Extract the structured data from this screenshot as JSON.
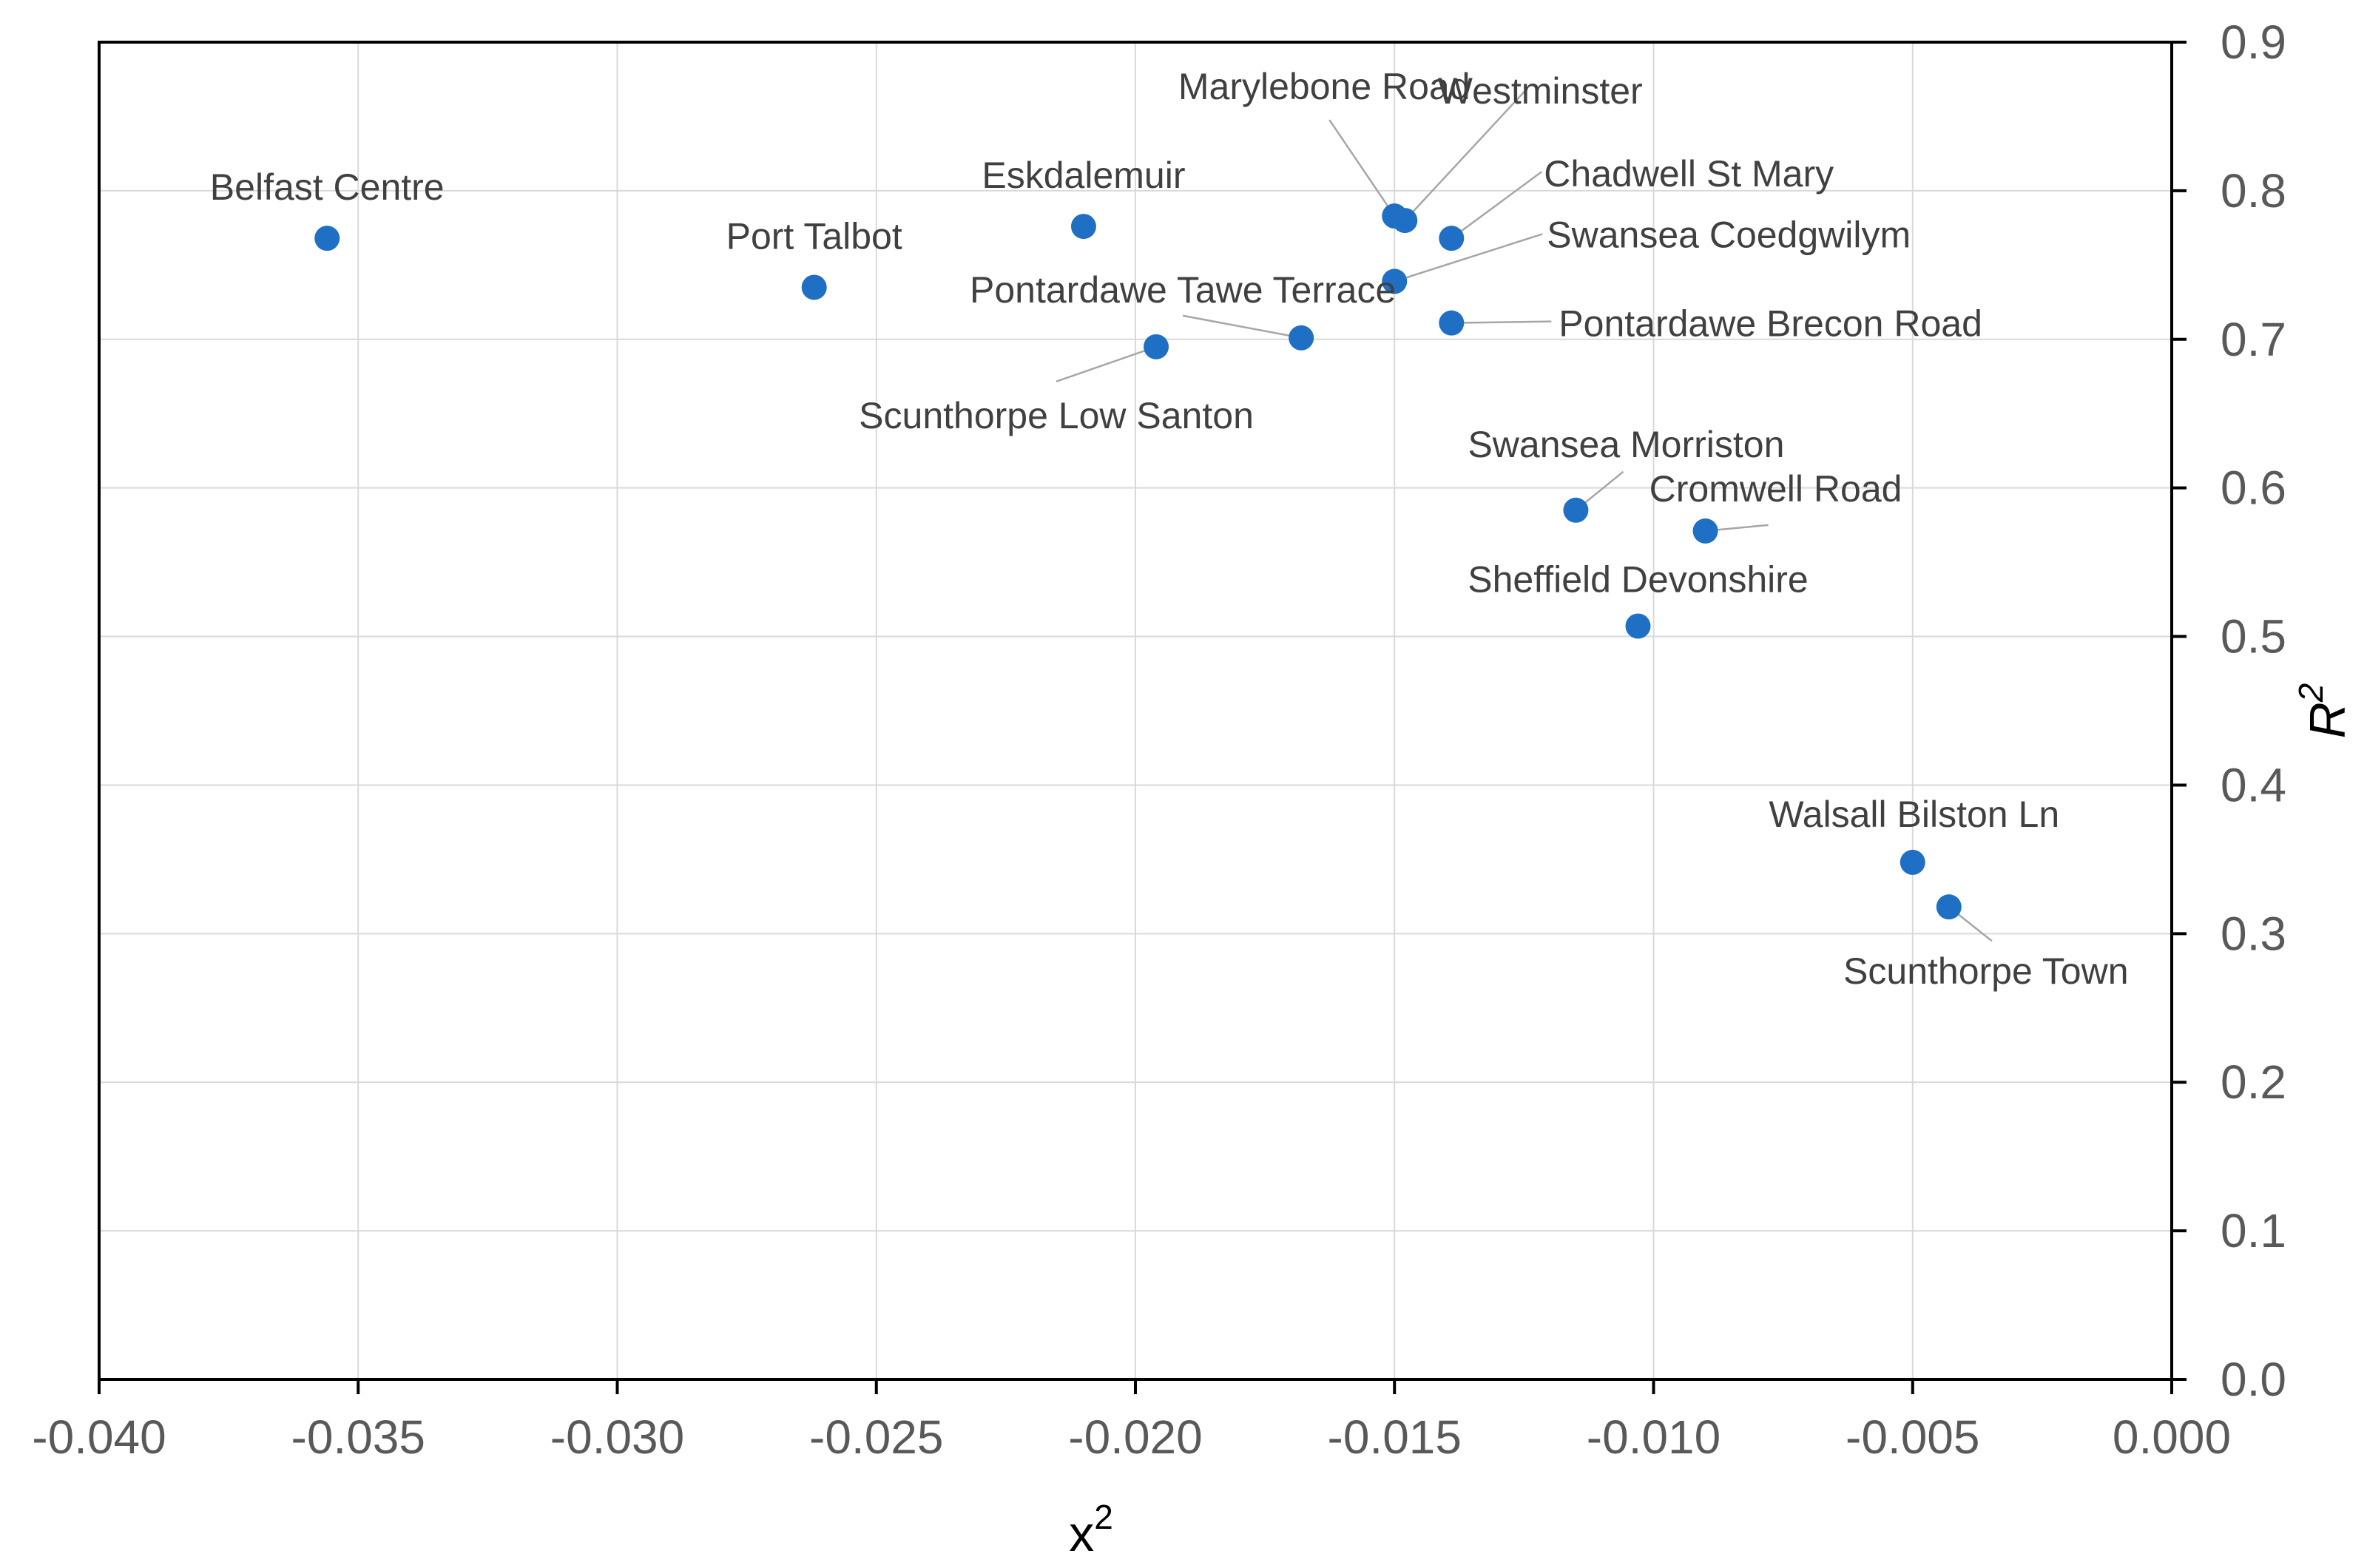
{
  "chart_data": {
    "type": "scatter",
    "title": "",
    "xlabel": {
      "base": "x",
      "sup": "2"
    },
    "ylabel": {
      "base": "R",
      "sup": "2"
    },
    "xlim": [
      -0.04,
      0.0
    ],
    "ylim": [
      0.0,
      0.9
    ],
    "x_ticks": [
      -0.04,
      -0.035,
      -0.03,
      -0.025,
      -0.02,
      -0.015,
      -0.01,
      -0.005,
      0.0
    ],
    "x_tick_labels": [
      "-0.040",
      "-0.035",
      "-0.030",
      "-0.025",
      "-0.020",
      "-0.015",
      "-0.010",
      "-0.005",
      "0.000"
    ],
    "y_ticks": [
      0.0,
      0.1,
      0.2,
      0.3,
      0.4,
      0.5,
      0.6,
      0.7,
      0.8,
      0.9
    ],
    "y_tick_labels": [
      "0.0",
      "0.1",
      "0.2",
      "0.3",
      "0.4",
      "0.5",
      "0.6",
      "0.7",
      "0.8",
      "0.9"
    ],
    "y_axis_side": "right",
    "grid": true,
    "marker_color": "#1f6fc5",
    "grid_color": "#d9d9d9",
    "points": [
      {
        "name": "Belfast Centre",
        "x": -0.0356,
        "y": 0.768
      },
      {
        "name": "Port Talbot",
        "x": -0.0262,
        "y": 0.735
      },
      {
        "name": "Eskdalemuir",
        "x": -0.021,
        "y": 0.776
      },
      {
        "name": "Scunthorpe Low Santon",
        "x": -0.0196,
        "y": 0.695
      },
      {
        "name": "Pontardawe Tawe Terrace",
        "x": -0.0168,
        "y": 0.701
      },
      {
        "name": "Marylebone Road",
        "x": -0.015,
        "y": 0.783
      },
      {
        "name": "Westminster",
        "x": -0.0148,
        "y": 0.78
      },
      {
        "name": "Swansea Coedgwilym",
        "x": -0.015,
        "y": 0.739
      },
      {
        "name": "Chadwell St Mary",
        "x": -0.0139,
        "y": 0.768
      },
      {
        "name": "Pontardawe Brecon Road",
        "x": -0.0139,
        "y": 0.711
      },
      {
        "name": "Swansea Morriston",
        "x": -0.0115,
        "y": 0.585
      },
      {
        "name": "Cromwell Road",
        "x": -0.009,
        "y": 0.571
      },
      {
        "name": "Sheffield Devonshire",
        "x": -0.0103,
        "y": 0.507
      },
      {
        "name": "Walsall Bilston Ln",
        "x": -0.005,
        "y": 0.348
      },
      {
        "name": "Scunthorpe Town",
        "x": -0.0043,
        "y": 0.318
      }
    ]
  }
}
